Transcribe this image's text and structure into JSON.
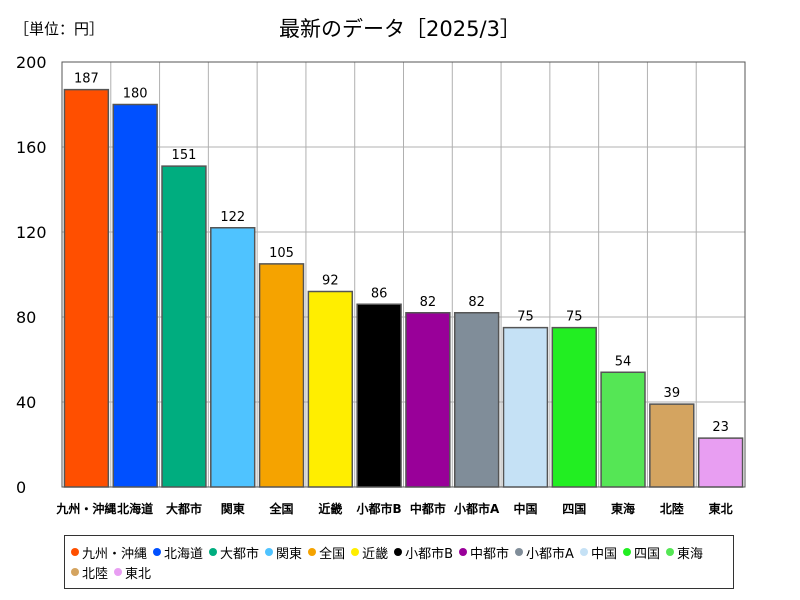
{
  "header": {
    "unit": "［単位：円］",
    "title": "最新のデータ［2025/3］"
  },
  "chart_data": {
    "type": "bar",
    "categories": [
      "九州・沖縄",
      "北海道",
      "大都市",
      "関東",
      "全国",
      "近畿",
      "小都市B",
      "中都市",
      "小都市A",
      "中国",
      "四国",
      "東海",
      "北陸",
      "東北"
    ],
    "values": [
      187,
      180,
      151,
      122,
      105,
      92,
      86,
      82,
      82,
      75,
      75,
      54,
      39,
      23
    ],
    "colors": [
      "#ff4f00",
      "#0050ff",
      "#00ad7f",
      "#4fc3ff",
      "#f5a300",
      "#ffee00",
      "#000000",
      "#990099",
      "#808d99",
      "#c5e1f5",
      "#22ee22",
      "#55e655",
      "#d4a460",
      "#e89ef2"
    ],
    "ylim": [
      0,
      200
    ],
    "yticks": [
      0,
      40,
      80,
      120,
      160,
      200
    ],
    "grid": true,
    "legend_position": "bottom"
  }
}
